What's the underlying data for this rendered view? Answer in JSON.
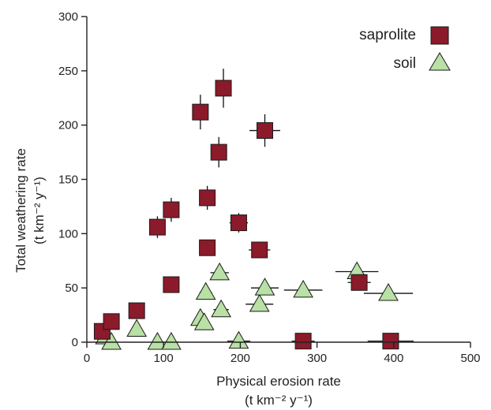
{
  "chart_data": {
    "type": "scatter",
    "title": "",
    "xlabel": "Physical erosion rate",
    "xlabel_unit": "(t km⁻² y⁻¹)",
    "ylabel": "Total weathering rate",
    "ylabel_unit": "(t km⁻² y⁻¹)",
    "xlim": [
      0,
      500
    ],
    "ylim": [
      0,
      300
    ],
    "xticks": [
      "0",
      "100",
      "200",
      "300",
      "400",
      "500"
    ],
    "yticks": [
      "0",
      "50",
      "100",
      "150",
      "200",
      "250",
      "300"
    ],
    "grid": false,
    "legend_position": "top-right",
    "colors": {
      "saprolite": "#8b1a2b",
      "soil": "#b9e0a5",
      "outline": "#1a1a1a"
    },
    "series": [
      {
        "name": "saprolite",
        "marker": "square",
        "points": [
          {
            "x": 20,
            "y": 10,
            "xerr": 0,
            "yerr": 0
          },
          {
            "x": 32,
            "y": 19,
            "xerr": 0,
            "yerr": 0
          },
          {
            "x": 65,
            "y": 29,
            "xerr": 0,
            "yerr": 0
          },
          {
            "x": 92,
            "y": 106,
            "xerr": 0,
            "yerr": 10
          },
          {
            "x": 110,
            "y": 122,
            "xerr": 0,
            "yerr": 11
          },
          {
            "x": 110,
            "y": 53,
            "xerr": 0,
            "yerr": 0
          },
          {
            "x": 148,
            "y": 212,
            "xerr": 10,
            "yerr": 16
          },
          {
            "x": 157,
            "y": 133,
            "xerr": 9,
            "yerr": 11
          },
          {
            "x": 157,
            "y": 87,
            "xerr": 7,
            "yerr": 6
          },
          {
            "x": 178,
            "y": 234,
            "xerr": 10,
            "yerr": 18
          },
          {
            "x": 172,
            "y": 175,
            "xerr": 9,
            "yerr": 14
          },
          {
            "x": 198,
            "y": 110,
            "xerr": 12,
            "yerr": 9
          },
          {
            "x": 232,
            "y": 195,
            "xerr": 20,
            "yerr": 15
          },
          {
            "x": 225,
            "y": 85,
            "xerr": 14,
            "yerr": 0
          },
          {
            "x": 355,
            "y": 55,
            "xerr": 15,
            "yerr": 0
          },
          {
            "x": 282,
            "y": 1,
            "xerr": 15,
            "yerr": 0
          },
          {
            "x": 396,
            "y": 1,
            "xerr": 30,
            "yerr": 0
          }
        ]
      },
      {
        "name": "soil",
        "marker": "triangle",
        "points": [
          {
            "x": 24,
            "y": 5,
            "xerr": 0,
            "yerr": 0
          },
          {
            "x": 32,
            "y": 0,
            "xerr": 0,
            "yerr": 0
          },
          {
            "x": 65,
            "y": 12,
            "xerr": 0,
            "yerr": 0
          },
          {
            "x": 92,
            "y": 0,
            "xerr": 0,
            "yerr": 0
          },
          {
            "x": 110,
            "y": 0,
            "xerr": 10,
            "yerr": 0
          },
          {
            "x": 148,
            "y": 22,
            "xerr": 0,
            "yerr": 0
          },
          {
            "x": 153,
            "y": 18,
            "xerr": 0,
            "yerr": 0
          },
          {
            "x": 155,
            "y": 46,
            "xerr": 8,
            "yerr": 0
          },
          {
            "x": 173,
            "y": 64,
            "xerr": 12,
            "yerr": 0
          },
          {
            "x": 175,
            "y": 30,
            "xerr": 10,
            "yerr": 0
          },
          {
            "x": 198,
            "y": 1,
            "xerr": 15,
            "yerr": 0
          },
          {
            "x": 225,
            "y": 35,
            "xerr": 18,
            "yerr": 0
          },
          {
            "x": 232,
            "y": 50,
            "xerr": 18,
            "yerr": 0
          },
          {
            "x": 282,
            "y": 48,
            "xerr": 25,
            "yerr": 0
          },
          {
            "x": 352,
            "y": 65,
            "xerr": 28,
            "yerr": 0
          },
          {
            "x": 393,
            "y": 45,
            "xerr": 32,
            "yerr": 0
          }
        ]
      }
    ]
  }
}
